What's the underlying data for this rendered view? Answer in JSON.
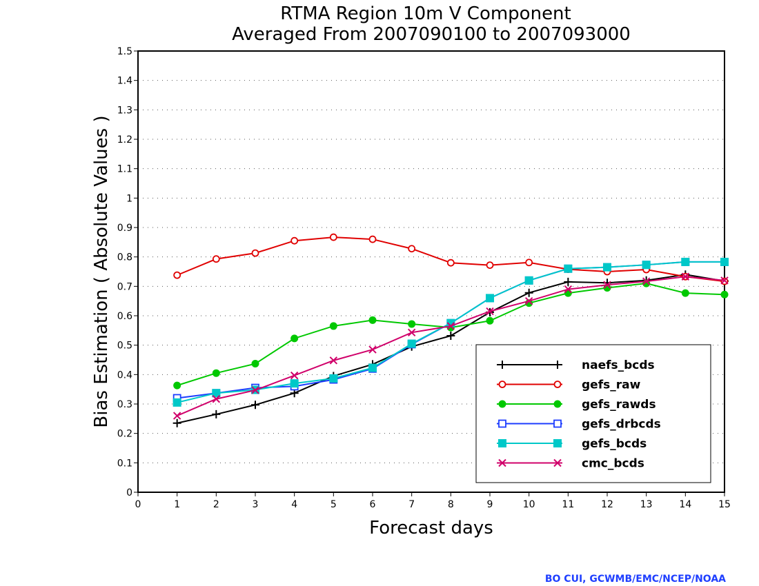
{
  "chart_data": {
    "type": "line",
    "title": "RTMA Region 10m V Component",
    "subtitle": "Averaged From 2007090100 to 2007093000",
    "xlabel": "Forecast days",
    "ylabel": "Bias Estimation ( Absolute Values )",
    "xlim": [
      0,
      15
    ],
    "ylim": [
      0,
      1.5
    ],
    "xticks": [
      "0",
      "1",
      "2",
      "3",
      "4",
      "5",
      "6",
      "7",
      "8",
      "9",
      "10",
      "11",
      "12",
      "13",
      "14",
      "15"
    ],
    "yticks": [
      "0",
      "0.1",
      "0.2",
      "0.3",
      "0.4",
      "0.5",
      "0.6",
      "0.7",
      "0.8",
      "0.9",
      "1",
      "1.1",
      "1.2",
      "1.3",
      "1.4",
      "1.5"
    ],
    "grid": "horizontal dotted",
    "legend_position": "bottom-right",
    "x": [
      1,
      2,
      3,
      4,
      5,
      6,
      7,
      8,
      9,
      10,
      11,
      12,
      13,
      14,
      15
    ],
    "series": [
      {
        "name": "naefs_bcds",
        "color": "#000000",
        "marker": "plus",
        "values": [
          0.235,
          0.265,
          0.297,
          0.337,
          0.395,
          0.435,
          0.495,
          0.532,
          0.612,
          0.678,
          0.715,
          0.712,
          0.72,
          0.74,
          0.718
        ]
      },
      {
        "name": "gefs_raw",
        "color": "#e00000",
        "marker": "open-circle",
        "values": [
          0.738,
          0.793,
          0.813,
          0.855,
          0.867,
          0.86,
          0.828,
          0.78,
          0.772,
          0.781,
          0.758,
          0.75,
          0.757,
          0.733,
          0.717
        ]
      },
      {
        "name": "gefs_rawds",
        "color": "#00c800",
        "marker": "filled-circle",
        "values": [
          0.363,
          0.405,
          0.437,
          0.523,
          0.565,
          0.585,
          0.572,
          0.56,
          0.583,
          0.643,
          0.677,
          0.695,
          0.71,
          0.677,
          0.672
        ]
      },
      {
        "name": "gefs_drbcds",
        "color": "#1c3cff",
        "marker": "open-square",
        "values": [
          0.32,
          0.337,
          0.355,
          0.36,
          0.383,
          0.42,
          0.503,
          0.575,
          0.66,
          0.72,
          0.76,
          0.765,
          0.773,
          0.783,
          0.783
        ]
      },
      {
        "name": "gefs_bcds",
        "color": "#00c8c8",
        "marker": "filled-square",
        "values": [
          0.305,
          0.337,
          0.348,
          0.37,
          0.387,
          0.423,
          0.505,
          0.575,
          0.66,
          0.72,
          0.76,
          0.765,
          0.773,
          0.783,
          0.783
        ]
      },
      {
        "name": "cmc_bcds",
        "color": "#d0006a",
        "marker": "x",
        "values": [
          0.26,
          0.317,
          0.347,
          0.397,
          0.448,
          0.485,
          0.543,
          0.565,
          0.615,
          0.65,
          0.69,
          0.705,
          0.717,
          0.733,
          0.72
        ]
      }
    ]
  },
  "credit": "BO CUI, GCWMB/EMC/NCEP/NOAA"
}
